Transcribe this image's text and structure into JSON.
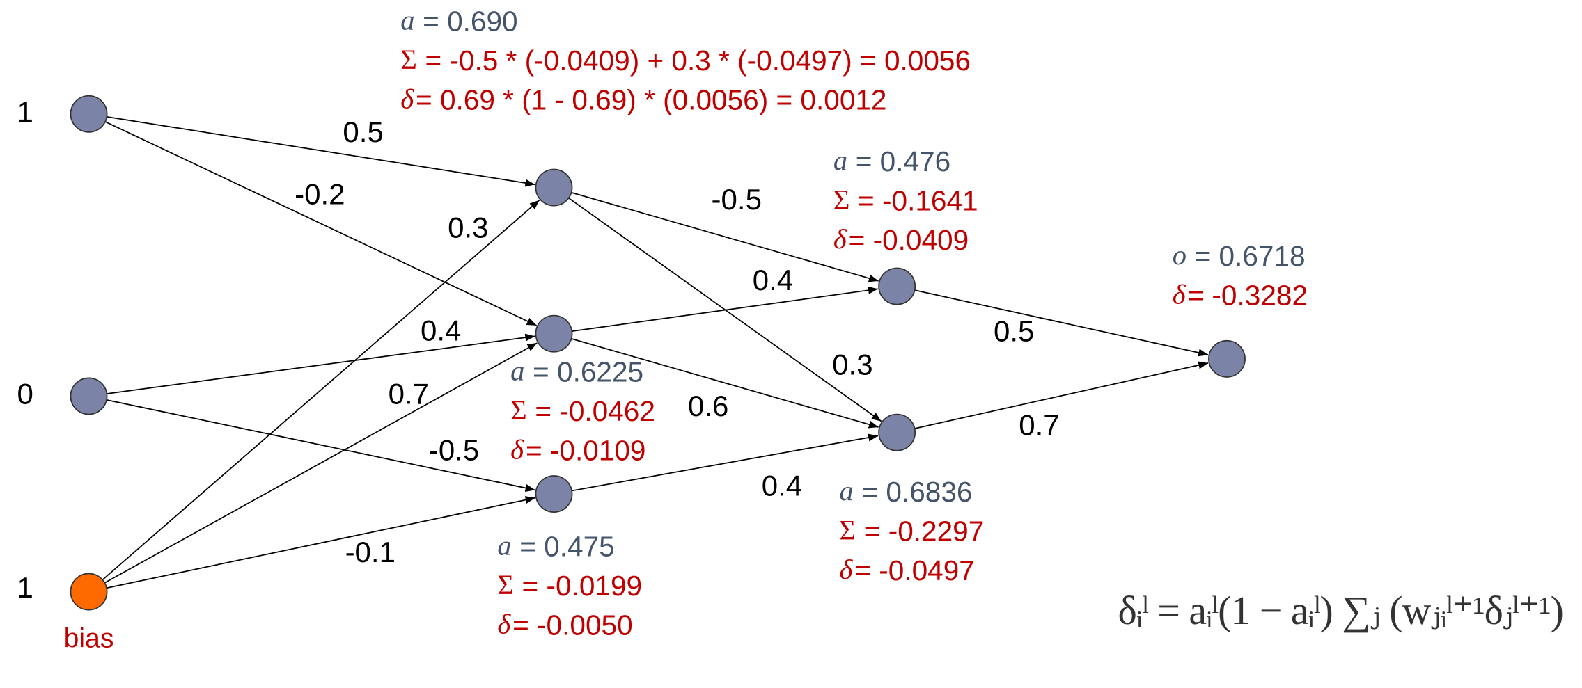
{
  "input_labels": [
    "1",
    "0",
    "1"
  ],
  "bias_label": "bias",
  "edge_weights": [
    "0.5",
    "-0.2",
    "0.4",
    "-0.5",
    "0.3",
    "0.7",
    "-0.1",
    "-0.5",
    "0.3",
    "0.4",
    "0.6",
    "0.4",
    "0.5",
    "0.7"
  ],
  "annotations": [
    {
      "lines": [
        {
          "symbol": "a",
          "text": "= 0.690"
        },
        {
          "symbol": "Σ",
          "text": "= -0.5 * (-0.0409) + 0.3 * (-0.0497) = 0.0056"
        },
        {
          "symbol": "δ",
          "text": "= 0.69 * (1 - 0.69) * (0.0056) = 0.0012"
        }
      ]
    },
    {
      "lines": [
        {
          "symbol": "a",
          "text": "= 0.6225"
        },
        {
          "symbol": "Σ",
          "text": "= -0.0462"
        },
        {
          "symbol": "δ",
          "text": "= -0.0109"
        }
      ]
    },
    {
      "lines": [
        {
          "symbol": "a",
          "text": "= 0.475"
        },
        {
          "symbol": "Σ",
          "text": "= -0.0199"
        },
        {
          "symbol": "δ",
          "text": "= -0.0050"
        }
      ]
    },
    {
      "lines": [
        {
          "symbol": "a",
          "text": "= 0.476"
        },
        {
          "symbol": "Σ",
          "text": "= -0.1641"
        },
        {
          "symbol": "δ",
          "text": "= -0.0409"
        }
      ]
    },
    {
      "lines": [
        {
          "symbol": "a",
          "text": "= 0.6836"
        },
        {
          "symbol": "Σ",
          "text": "= -0.2297"
        },
        {
          "symbol": "δ",
          "text": "= -0.0497"
        }
      ]
    },
    {
      "lines": [
        {
          "symbol": "o",
          "text": "= 0.6718"
        },
        {
          "symbol": "δ",
          "text": "= -0.3282"
        }
      ]
    }
  ],
  "formula": "δᵢˡ = aᵢˡ(1 − aᵢˡ) ∑ⱼ (wⱼᵢˡ⁺¹δⱼˡ⁺¹)"
}
